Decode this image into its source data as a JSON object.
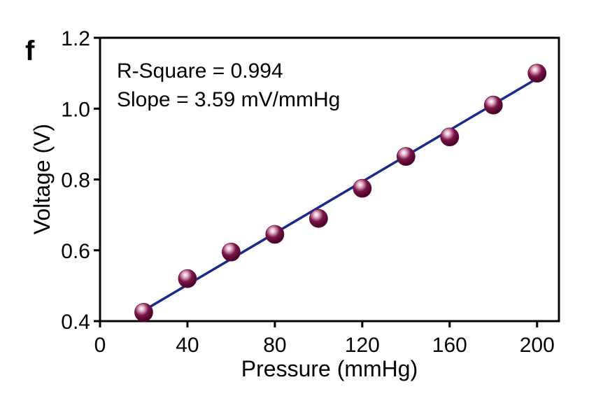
{
  "panel_label": "f",
  "chart_data": {
    "type": "scatter",
    "xlabel": "Pressure (mmHg)",
    "ylabel": "Voltage (V)",
    "xlim": [
      0,
      210
    ],
    "ylim": [
      0.4,
      1.2
    ],
    "xticks": [
      0,
      40,
      80,
      120,
      160,
      200
    ],
    "xtick_labels": [
      "0",
      "40",
      "80",
      "120",
      "160",
      "200"
    ],
    "yticks": [
      0.4,
      0.6,
      0.8,
      1.0,
      1.2
    ],
    "ytick_labels": [
      "0.4",
      "0.6",
      "0.8",
      "1.0",
      "1.2"
    ],
    "grid": false,
    "series": [
      {
        "x": [
          20,
          40,
          60,
          80,
          100,
          120,
          140,
          160,
          180,
          200
        ],
        "y": [
          0.425,
          0.52,
          0.595,
          0.645,
          0.69,
          0.775,
          0.865,
          0.92,
          1.01,
          1.1
        ],
        "marker_color": "#6e1040"
      }
    ],
    "fit_line": {
      "x": [
        20,
        200
      ],
      "y": [
        0.43,
        1.085
      ],
      "color": "#1a2a8c"
    },
    "annotations": [
      "R-Square = 0.994",
      "Slope = 3.59 mV/mmHg"
    ]
  }
}
